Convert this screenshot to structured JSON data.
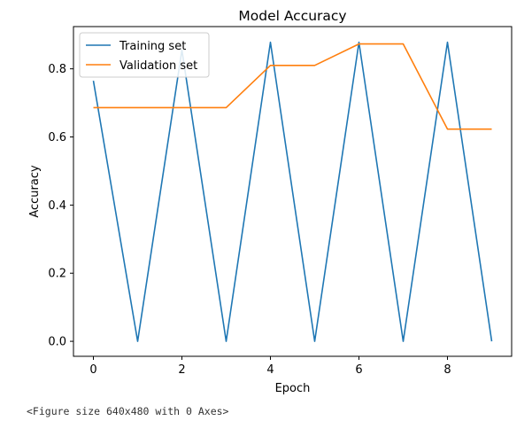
{
  "chart_data": {
    "type": "line",
    "title": "Model Accuracy",
    "xlabel": "Epoch",
    "ylabel": "Accuracy",
    "xlim": [
      -0.45,
      9.45
    ],
    "ylim": [
      -0.044,
      0.924
    ],
    "xticks": [
      0,
      2,
      4,
      6,
      8
    ],
    "yticks": [
      0.0,
      0.2,
      0.4,
      0.6,
      0.8
    ],
    "grid": false,
    "legend_position": "top-left",
    "x": [
      0,
      1,
      2,
      3,
      4,
      5,
      6,
      7,
      8,
      9
    ],
    "series": [
      {
        "name": "Training set",
        "color": "#1f77b4",
        "values": [
          0.765,
          0.0,
          0.855,
          0.0,
          0.878,
          0.0,
          0.878,
          0.0,
          0.878,
          0.0
        ]
      },
      {
        "name": "Validation set",
        "color": "#ff7f0e",
        "values": [
          0.686,
          0.686,
          0.686,
          0.686,
          0.81,
          0.81,
          0.873,
          0.873,
          0.623,
          0.623
        ]
      }
    ]
  },
  "figure_note": "<Figure size 640x480 with 0 Axes>"
}
